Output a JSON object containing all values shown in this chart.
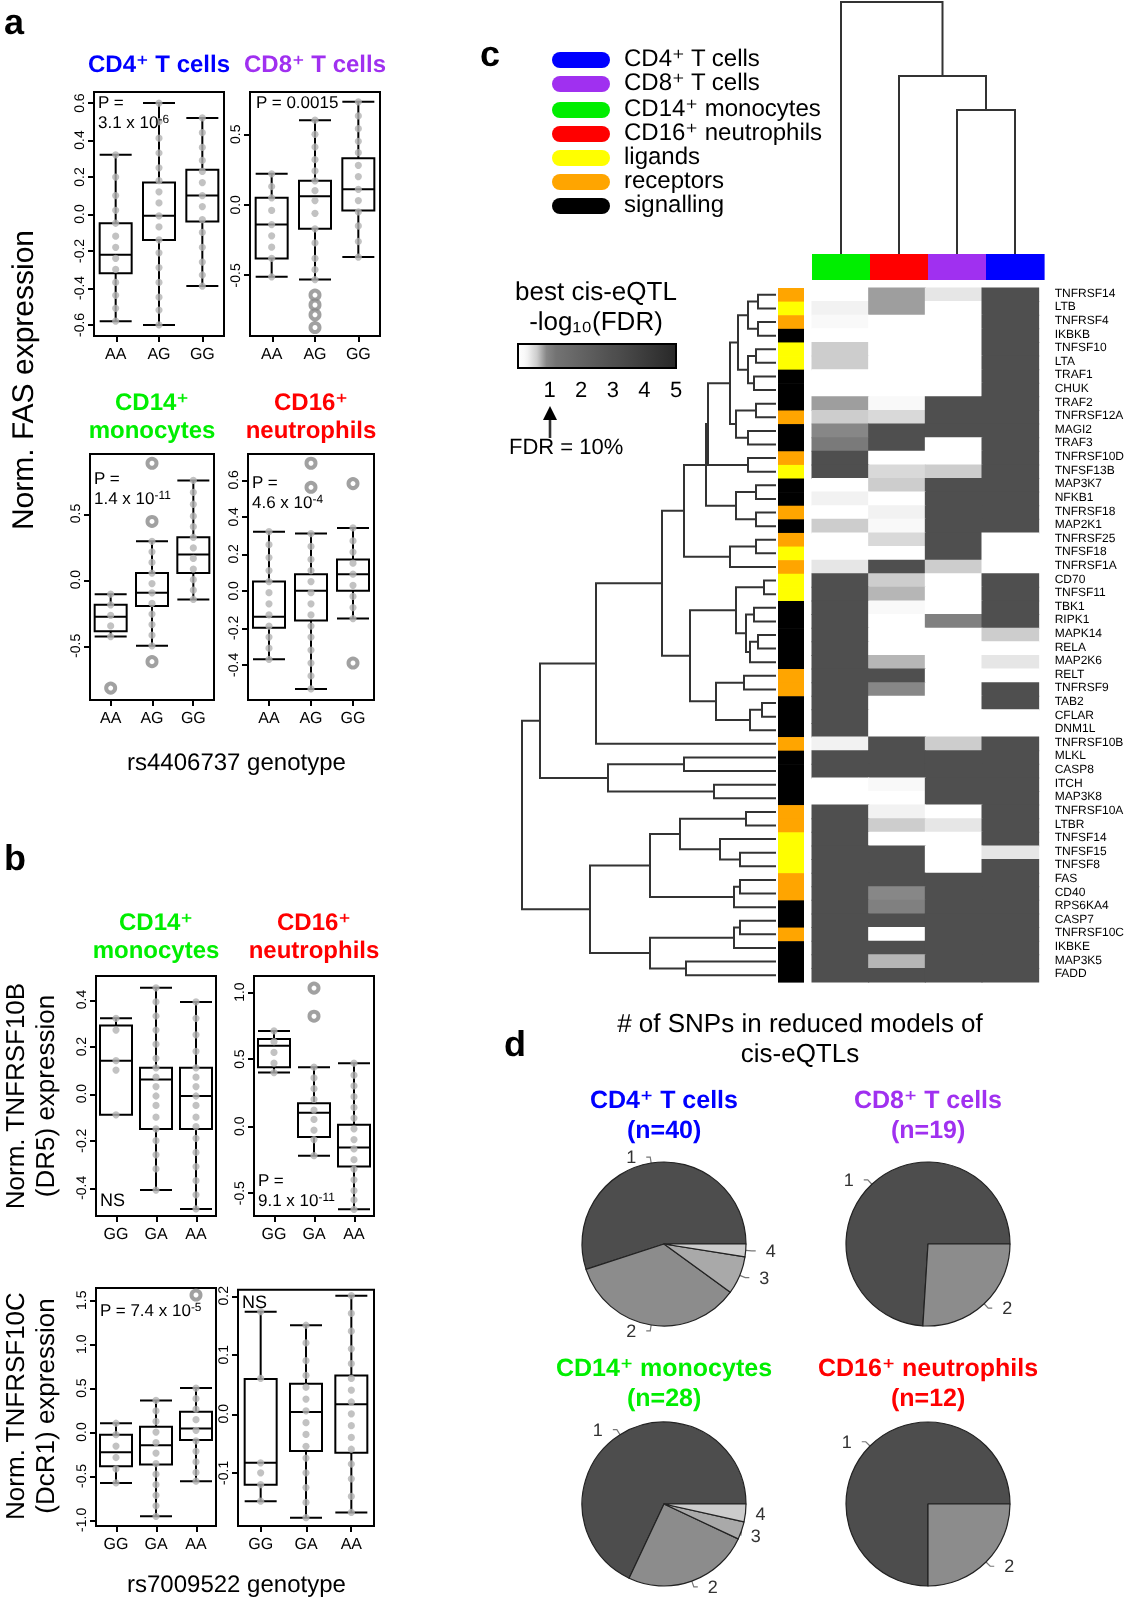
{
  "chart_data": [
    {
      "type": "box",
      "title": "CD4⁺ T cells",
      "ylabel": "Norm. FAS expression",
      "categories": [
        "AA",
        "AG",
        "GG"
      ],
      "ylim": [
        -0.66,
        0.66
      ],
      "yticks": [
        -0.6,
        -0.4,
        -0.2,
        {
          "value": 0,
          "label": "0.0"
        },
        0.2,
        0.4,
        0.6
      ],
      "marker": "circle",
      "boxes": [
        {
          "low": -0.58,
          "q1": -0.32,
          "median": -0.22,
          "q3": -0.05,
          "high": 0.32
        },
        {
          "low": -0.6,
          "q1": -0.14,
          "median": -0.01,
          "q3": 0.17,
          "high": 0.6
        },
        {
          "low": -0.39,
          "q1": -0.04,
          "median": 0.1,
          "q3": 0.24,
          "high": 0.52
        }
      ],
      "series": [
        {
          "type": "scatter",
          "color": "#b3b3b3",
          "x": [
            "AA",
            "AA",
            "AA",
            "AA",
            "AA",
            "AA",
            "AA",
            "AA",
            "AA",
            "AA",
            "AA",
            "AA",
            "AA",
            "AG",
            "AG",
            "AG",
            "AG",
            "AG",
            "AG",
            "AG",
            "AG",
            "AG",
            "AG",
            "AG",
            "AG",
            "AG",
            "AG",
            "AG",
            "AG",
            "AG",
            "GG",
            "GG",
            "GG",
            "GG",
            "GG",
            "GG",
            "GG",
            "GG",
            "GG",
            "GG",
            "GG",
            "GG",
            "GG",
            "GG"
          ],
          "values": [
            0.32,
            0.2,
            0.1,
            0.02,
            -0.05,
            -0.12,
            -0.18,
            -0.24,
            -0.3,
            -0.37,
            -0.44,
            -0.51,
            -0.58,
            0.6,
            0.5,
            0.41,
            0.33,
            0.25,
            0.18,
            0.12,
            0.06,
            -0.01,
            -0.07,
            -0.14,
            -0.21,
            -0.29,
            -0.37,
            -0.45,
            -0.52,
            -0.6,
            0.52,
            0.44,
            0.36,
            0.29,
            0.23,
            0.17,
            0.1,
            0.04,
            -0.03,
            -0.1,
            -0.18,
            -0.26,
            -0.33,
            -0.39
          ]
        }
      ],
      "annotations": [
        "a",
        "P =\n3.1 x 10$^{-6}$"
      ]
    },
    {
      "type": "box",
      "title": "CD8⁺ T cells",
      "categories": [
        "AA",
        "AG",
        "GG"
      ],
      "ylim": [
        -0.93,
        0.8
      ],
      "yticks": [
        -0.5,
        {
          "value": 0,
          "label": "0.0"
        },
        0.5
      ],
      "marker": "circle",
      "boxes": [
        {
          "low": -0.51,
          "q1": -0.38,
          "median": -0.14,
          "q3": 0.05,
          "high": 0.22
        },
        {
          "low": -0.53,
          "q1": -0.17,
          "median": 0.06,
          "q3": 0.17,
          "high": 0.6,
          "outliers": [
            -0.64,
            -0.71,
            -0.78,
            -0.87
          ]
        },
        {
          "low": -0.37,
          "q1": -0.04,
          "median": 0.11,
          "q3": 0.33,
          "high": 0.73
        }
      ],
      "series": [
        {
          "type": "scatter",
          "color": "#b3b3b3",
          "x": [
            "AA",
            "AA",
            "AA",
            "AA",
            "AA",
            "AA",
            "AA",
            "AA",
            "AA",
            "AG",
            "AG",
            "AG",
            "AG",
            "AG",
            "AG",
            "AG",
            "AG",
            "AG",
            "AG",
            "AG",
            "AG",
            "AG",
            "AG",
            "GG",
            "GG",
            "GG",
            "GG",
            "GG",
            "GG",
            "GG",
            "GG",
            "GG",
            "GG",
            "GG",
            "GG",
            "GG"
          ],
          "values": [
            0.22,
            0.13,
            0.05,
            -0.04,
            -0.14,
            -0.22,
            -0.3,
            -0.38,
            -0.51,
            0.6,
            0.5,
            0.41,
            0.32,
            0.24,
            0.17,
            0.1,
            0.03,
            -0.06,
            -0.17,
            -0.27,
            -0.38,
            -0.46,
            -0.53,
            0.73,
            0.63,
            0.54,
            0.45,
            0.37,
            0.28,
            0.2,
            0.11,
            0.03,
            -0.05,
            -0.15,
            -0.26,
            -0.37
          ]
        }
      ],
      "annotations": [
        "P = 0.0015"
      ]
    },
    {
      "type": "box",
      "title": "CD14⁺ monocytes",
      "xlabel": "rs4406737 genotype",
      "categories": [
        "AA",
        "AG",
        "GG"
      ],
      "ylim": [
        -0.91,
        0.95
      ],
      "yticks": [
        -0.5,
        {
          "value": 0,
          "label": "0.0"
        },
        0.5
      ],
      "marker": "circle",
      "boxes": [
        {
          "low": -0.43,
          "q1": -0.39,
          "median": -0.28,
          "q3": -0.19,
          "high": -0.11,
          "outliers": [
            -0.82
          ]
        },
        {
          "low": -0.5,
          "q1": -0.2,
          "median": -0.1,
          "q3": 0.05,
          "high": 0.29,
          "outliers": [
            0.88,
            0.44,
            -0.62
          ]
        },
        {
          "low": -0.15,
          "q1": 0.05,
          "median": 0.19,
          "q3": 0.32,
          "high": 0.75
        }
      ],
      "series": [
        {
          "type": "scatter",
          "color": "#b3b3b3",
          "x": [
            "AA",
            "AA",
            "AA",
            "AA",
            "AA",
            "AG",
            "AG",
            "AG",
            "AG",
            "AG",
            "AG",
            "AG",
            "AG",
            "AG",
            "AG",
            "AG",
            "GG",
            "GG",
            "GG",
            "GG",
            "GG",
            "GG",
            "GG",
            "GG",
            "GG",
            "GG",
            "GG",
            "GG"
          ],
          "values": [
            -0.11,
            -0.19,
            -0.27,
            -0.35,
            -0.43,
            0.29,
            0.21,
            0.13,
            0.05,
            -0.03,
            -0.1,
            -0.18,
            -0.26,
            -0.34,
            -0.42,
            -0.5,
            0.75,
            0.66,
            0.57,
            0.48,
            0.4,
            0.32,
            0.24,
            0.16,
            0.08,
            0,
            -0.08,
            -0.15
          ]
        }
      ],
      "annotations": [
        "P =\n1.4 x 10$^{-11}$"
      ]
    },
    {
      "type": "box",
      "title": "CD16⁺ neutrophils",
      "categories": [
        "AA",
        "AG",
        "GG"
      ],
      "ylim": [
        -0.59,
        0.74
      ],
      "yticks": [
        -0.4,
        -0.2,
        {
          "value": 0,
          "label": "0.0"
        },
        0.2,
        0.4,
        0.6
      ],
      "marker": "circle",
      "boxes": [
        {
          "low": -0.37,
          "q1": -0.2,
          "median": -0.14,
          "q3": 0.05,
          "high": 0.32
        },
        {
          "low": -0.53,
          "q1": -0.16,
          "median": 0,
          "q3": 0.09,
          "high": 0.31,
          "outliers": [
            0.69,
            0.56
          ]
        },
        {
          "low": -0.15,
          "q1": 0,
          "median": 0.09,
          "q3": 0.17,
          "high": 0.34,
          "outliers": [
            0.58,
            -0.39
          ]
        }
      ],
      "series": [
        {
          "type": "scatter",
          "color": "#b3b3b3",
          "x": [
            "AA",
            "AA",
            "AA",
            "AA",
            "AA",
            "AA",
            "AA",
            "AA",
            "AA",
            "AA",
            "AA",
            "AA",
            "AG",
            "AG",
            "AG",
            "AG",
            "AG",
            "AG",
            "AG",
            "AG",
            "AG",
            "AG",
            "AG",
            "AG",
            "AG",
            "AG",
            "GG",
            "GG",
            "GG",
            "GG",
            "GG",
            "GG",
            "GG",
            "GG",
            "GG"
          ],
          "values": [
            0.32,
            0.25,
            0.18,
            0.11,
            0.05,
            -0.01,
            -0.07,
            -0.13,
            -0.19,
            -0.25,
            -0.31,
            -0.37,
            0.31,
            0.24,
            0.17,
            0.11,
            0.05,
            -0.01,
            -0.07,
            -0.13,
            -0.19,
            -0.25,
            -0.32,
            -0.39,
            -0.46,
            -0.53,
            0.34,
            0.27,
            0.21,
            0.15,
            0.09,
            0.03,
            -0.03,
            -0.09,
            -0.15
          ]
        }
      ],
      "annotations": [
        "P =\n4.6 x 10$^{-4}$"
      ]
    },
    {
      "type": "box",
      "title": "CD14⁺ monocytes",
      "ylabel": "Norm. TNFRSF10B (DR5) expression",
      "categories": [
        "GG",
        "GA",
        "AA"
      ],
      "ylim": [
        -0.52,
        0.5
      ],
      "yticks": [
        -0.4,
        -0.2,
        {
          "value": 0,
          "label": "0.0"
        },
        0.2,
        0.4
      ],
      "marker": "circle",
      "boxes": [
        {
          "low": -0.09,
          "q1": -0.09,
          "median": 0.14,
          "q3": 0.29,
          "high": 0.32
        },
        {
          "low": -0.41,
          "q1": -0.15,
          "median": 0.06,
          "q3": 0.11,
          "high": 0.45
        },
        {
          "low": -0.49,
          "q1": -0.15,
          "median": -0.01,
          "q3": 0.11,
          "high": 0.39
        }
      ],
      "series": [
        {
          "type": "scatter",
          "color": "#b3b3b3",
          "x": [
            "GG",
            "GG",
            "GG",
            "GG",
            "GG",
            "GA",
            "GA",
            "GA",
            "GA",
            "GA",
            "GA",
            "GA",
            "GA",
            "GA",
            "GA",
            "GA",
            "GA",
            "GA",
            "GA",
            "GA",
            "GA",
            "GA",
            "AA",
            "AA",
            "AA",
            "AA",
            "AA",
            "AA",
            "AA",
            "AA",
            "AA",
            "AA",
            "AA",
            "AA",
            "AA",
            "AA",
            "AA",
            "AA",
            "AA"
          ],
          "values": [
            0.32,
            0.27,
            0.14,
            0.1,
            -0.09,
            0.45,
            0.39,
            0.33,
            0.27,
            0.21,
            0.15,
            0.11,
            0.07,
            0.03,
            -0.01,
            -0.05,
            -0.1,
            -0.15,
            -0.2,
            -0.26,
            -0.32,
            -0.41,
            0.39,
            0.32,
            0.25,
            0.18,
            0.11,
            0.07,
            0.03,
            -0.01,
            -0.05,
            -0.1,
            -0.14,
            -0.19,
            -0.25,
            -0.31,
            -0.37,
            -0.43,
            -0.49
          ]
        }
      ],
      "annotations": [
        "b",
        "NS"
      ]
    },
    {
      "type": "box",
      "title": "CD16⁺ neutrophils",
      "categories": [
        "GG",
        "GA",
        "AA"
      ],
      "ylim": [
        -0.67,
        1.12
      ],
      "yticks": [
        -0.5,
        {
          "value": 0,
          "label": "0.0"
        },
        0.5,
        {
          "value": 1,
          "label": "1.0"
        }
      ],
      "marker": "circle",
      "boxes": [
        {
          "low": 0.4,
          "q1": 0.44,
          "median": 0.6,
          "q3": 0.65,
          "high": 0.71
        },
        {
          "low": -0.22,
          "q1": -0.08,
          "median": 0.1,
          "q3": 0.17,
          "high": 0.44,
          "outliers": [
            1.03,
            0.82
          ]
        },
        {
          "low": -0.62,
          "q1": -0.3,
          "median": -0.16,
          "q3": 0.01,
          "high": 0.47
        }
      ],
      "series": [
        {
          "type": "scatter",
          "color": "#b3b3b3",
          "x": [
            "GG",
            "GG",
            "GG",
            "GG",
            "GG",
            "GA",
            "GA",
            "GA",
            "GA",
            "GA",
            "GA",
            "GA",
            "GA",
            "GA",
            "AA",
            "AA",
            "AA",
            "AA",
            "AA",
            "AA",
            "AA",
            "AA",
            "AA",
            "AA",
            "AA",
            "AA",
            "AA",
            "AA",
            "AA"
          ],
          "values": [
            0.71,
            0.63,
            0.55,
            0.47,
            0.4,
            0.44,
            0.36,
            0.28,
            0.2,
            0.12,
            0.05,
            -0.03,
            -0.1,
            -0.22,
            0.47,
            0.38,
            0.3,
            0.22,
            0.14,
            0.06,
            -0.02,
            -0.1,
            -0.17,
            -0.25,
            -0.32,
            -0.4,
            -0.48,
            -0.55,
            -0.62
          ]
        }
      ],
      "annotations": [
        "P =\n9.1 x 10$^{-11}$"
      ]
    },
    {
      "type": "box",
      "ylabel": "Norm. TNFRSF10C (DcR1) expression",
      "xlabel": "rs7009522 genotype",
      "categories": [
        "GG",
        "GA",
        "AA"
      ],
      "ylim": [
        -1.07,
        1.64
      ],
      "yticks": [
        {
          "value": -1,
          "label": "-1.0"
        },
        -0.5,
        {
          "value": 0,
          "label": "0.0"
        },
        0.5,
        {
          "value": 1,
          "label": "1.0"
        },
        1.5
      ],
      "marker": "circle",
      "boxes": [
        {
          "low": -0.58,
          "q1": -0.39,
          "median": -0.23,
          "q3": -0.03,
          "high": 0.1
        },
        {
          "low": -0.96,
          "q1": -0.37,
          "median": -0.15,
          "q3": 0.06,
          "high": 0.36
        },
        {
          "low": -0.56,
          "q1": -0.09,
          "median": 0.04,
          "q3": 0.23,
          "high": 0.5,
          "outliers": [
            1.56
          ]
        }
      ],
      "series": [
        {
          "type": "scatter",
          "color": "#b3b3b3",
          "x": [
            "GG",
            "GG",
            "GG",
            "GG",
            "GG",
            "GG",
            "GA",
            "GA",
            "GA",
            "GA",
            "GA",
            "GA",
            "GA",
            "GA",
            "GA",
            "GA",
            "GA",
            "GA",
            "AA",
            "AA",
            "AA",
            "AA",
            "AA",
            "AA",
            "AA",
            "AA",
            "AA",
            "AA"
          ],
          "values": [
            0.1,
            -0.03,
            -0.16,
            -0.29,
            -0.42,
            -0.58,
            0.36,
            0.24,
            0.12,
            0,
            -0.12,
            -0.24,
            -0.36,
            -0.48,
            -0.6,
            -0.72,
            -0.84,
            -0.96,
            0.5,
            0.38,
            0.26,
            0.14,
            0.02,
            -0.1,
            -0.22,
            -0.34,
            -0.46,
            -0.56
          ]
        }
      ],
      "annotations": [
        "P = 7.4 x 10$^{-5}$"
      ]
    },
    {
      "type": "box",
      "categories": [
        "GG",
        "GA",
        "AA"
      ],
      "ylim": [
        -0.19,
        0.21
      ],
      "yticks": [
        -0.1,
        {
          "value": 0,
          "label": "0.0"
        },
        0.1,
        0.2
      ],
      "marker": "circle",
      "boxes": [
        {
          "low": -0.148,
          "q1": -0.12,
          "median": -0.083,
          "q3": 0.059,
          "high": 0.173
        },
        {
          "low": -0.176,
          "q1": -0.063,
          "median": 0.003,
          "q3": 0.051,
          "high": 0.15
        },
        {
          "low": -0.167,
          "q1": -0.066,
          "median": 0.016,
          "q3": 0.065,
          "high": 0.2
        }
      ],
      "series": [
        {
          "type": "scatter",
          "color": "#b3b3b3",
          "x": [
            "GG",
            "GG",
            "GG",
            "GG",
            "GG",
            "GG",
            "GA",
            "GA",
            "GA",
            "GA",
            "GA",
            "GA",
            "GA",
            "GA",
            "GA",
            "GA",
            "GA",
            "GA",
            "GA",
            "GA",
            "GA",
            "AA",
            "AA",
            "AA",
            "AA",
            "AA",
            "AA",
            "AA",
            "AA",
            "AA",
            "AA",
            "AA",
            "AA",
            "AA",
            "AA",
            "AA",
            "AA"
          ],
          "values": [
            0.173,
            0.06,
            -0.083,
            -0.1,
            -0.12,
            -0.148,
            0.15,
            0.12,
            0.09,
            0.065,
            0.045,
            0.025,
            0.005,
            -0.015,
            -0.035,
            -0.055,
            -0.075,
            -0.1,
            -0.125,
            -0.15,
            -0.176,
            0.2,
            0.17,
            0.14,
            0.11,
            0.085,
            0.06,
            0.04,
            0.02,
            0,
            -0.02,
            -0.04,
            -0.06,
            -0.085,
            -0.11,
            -0.14,
            -0.167
          ]
        }
      ],
      "annotations": [
        "NS"
      ]
    },
    {
      "type": "heatmap",
      "categories": [
        null,
        null,
        null,
        null
      ],
      "y_categories": [
        "TNFRSF14",
        "LTB",
        "TNFRSF4",
        "IKBKB",
        "TNFSF10",
        "LTA",
        "TRAF1",
        "CHUK",
        "TRAF2",
        "TNFRSF12A",
        "MAGI2",
        "TRAF3",
        "TNFRSF10D",
        "TNFSF13B",
        "MAP3K7",
        "NFKB1",
        "TNFRSF18",
        "MAP2K1",
        "TNFRSF25",
        "TNFSF18",
        "TNFRSF1A",
        "CD70",
        "TNFSF11",
        "TBK1",
        "RIPK1",
        "MAPK14",
        "RELA",
        "MAP2K6",
        "RELT",
        "TNFRSF9",
        "TAB2",
        "CFLAR",
        "DNM1L",
        "TNFRSF10B",
        "MLKL",
        "CASP8",
        "ITCH",
        "MAP3K8",
        "TNFRSF10A",
        "LTBR",
        "TNFSF14",
        "TNFSF15",
        "TNFSF8",
        "FAS",
        "CD40",
        "RPS6KA4",
        "CASP7",
        "TNFRSF10C",
        "IKBKE",
        "MAP3K5",
        "FADD"
      ],
      "cells": [
        [
          0,
          0.8,
          0.4,
          3
        ],
        [
          0.3,
          0.8,
          0,
          3
        ],
        [
          0.2,
          0,
          0,
          3
        ],
        [
          0,
          0,
          0,
          3
        ],
        [
          0.6,
          0,
          0,
          3
        ],
        [
          0.6,
          0,
          0,
          3
        ],
        [
          0,
          0,
          0,
          3
        ],
        [
          0,
          0,
          0,
          3
        ],
        [
          0.8,
          0.2,
          3,
          3
        ],
        [
          0.6,
          0.5,
          3,
          3
        ],
        [
          0.9,
          3,
          3,
          3
        ],
        [
          1.1,
          3,
          0,
          3
        ],
        [
          3,
          0,
          0,
          3
        ],
        [
          3,
          0.5,
          0.6,
          3
        ],
        [
          0,
          0.6,
          3,
          3
        ],
        [
          0.3,
          0,
          3,
          3
        ],
        [
          0,
          0.3,
          3,
          3
        ],
        [
          0.6,
          0.2,
          3,
          3
        ],
        [
          0,
          0.5,
          3,
          0
        ],
        [
          0,
          0,
          3,
          0
        ],
        [
          0.4,
          3,
          0.6,
          0
        ],
        [
          3,
          0.6,
          0,
          3
        ],
        [
          3,
          0.7,
          0,
          3
        ],
        [
          3,
          0.2,
          0,
          3
        ],
        [
          3,
          0,
          1,
          3
        ],
        [
          3,
          0,
          0,
          0.6
        ],
        [
          3,
          0,
          0,
          0
        ],
        [
          3,
          0.7,
          0,
          0.4
        ],
        [
          3,
          3,
          0,
          0
        ],
        [
          3,
          0.9,
          0,
          3
        ],
        [
          3,
          0,
          0,
          3
        ],
        [
          3,
          0,
          0,
          0
        ],
        [
          3,
          0,
          0,
          0
        ],
        [
          0.3,
          3,
          0.6,
          3
        ],
        [
          3,
          3,
          3,
          3
        ],
        [
          3,
          3,
          3,
          3
        ],
        [
          0,
          0.2,
          3,
          3
        ],
        [
          0,
          0,
          3,
          3
        ],
        [
          3,
          0.3,
          0,
          3
        ],
        [
          3,
          0.6,
          0.4,
          3
        ],
        [
          3,
          0,
          0,
          3
        ],
        [
          3,
          3,
          0,
          0.4
        ],
        [
          3,
          3,
          0,
          3
        ],
        [
          3,
          3,
          3,
          3
        ],
        [
          3,
          0.9,
          3,
          3
        ],
        [
          3,
          1,
          3,
          3
        ],
        [
          3,
          3,
          3,
          3
        ],
        [
          3,
          0,
          3,
          3
        ],
        [
          3,
          3,
          3,
          3
        ],
        [
          3,
          0.7,
          3,
          3
        ],
        [
          3,
          3,
          3,
          3
        ]
      ],
      "clabel": "best cis-eQTL -log₁₀(FDR)",
      "clim": [
        0,
        5
      ],
      "cticks": [
        1,
        2,
        3,
        4,
        5
      ],
      "annotations": [
        "c",
        "FDR = 10%",
        "CD4⁺ T cells",
        "CD8⁺ T cells",
        "CD14⁺ monocytes",
        "CD16⁺ neutrophils",
        "ligands",
        "receptors",
        "signalling"
      ]
    },
    {
      "type": "pie",
      "title": "CD4⁺ T cells",
      "subtitle": "(n=40)",
      "categories": [
        "1",
        "2",
        "3",
        "4"
      ],
      "values": [
        55,
        35,
        7.5,
        2.5
      ],
      "colors": [
        "#4d4d4d",
        "#8c8c8c",
        "#a9a9a9",
        "#cccccc"
      ],
      "annotations": [
        "d",
        "# of SNPs in reduced models of cis-eQTLs"
      ]
    },
    {
      "type": "pie",
      "title": "CD8⁺ T cells",
      "subtitle": "(n=19)",
      "categories": [
        "1",
        "2"
      ],
      "values": [
        74,
        26
      ],
      "colors": [
        "#4d4d4d",
        "#8c8c8c"
      ]
    },
    {
      "type": "pie",
      "title": "CD14⁺ monocytes",
      "subtitle": "(n=28)",
      "categories": [
        "1",
        "2",
        "3",
        "4"
      ],
      "values": [
        68,
        25,
        3.5,
        3.5
      ],
      "colors": [
        "#4d4d4d",
        "#8c8c8c",
        "#a9a9a9",
        "#cccccc"
      ]
    },
    {
      "type": "pie",
      "title": "CD16⁺ neutrophils",
      "subtitle": "(n=12)",
      "categories": [
        "1",
        "2"
      ],
      "values": [
        75,
        25
      ],
      "colors": [
        "#4d4d4d",
        "#8c8c8c"
      ]
    }
  ]
}
